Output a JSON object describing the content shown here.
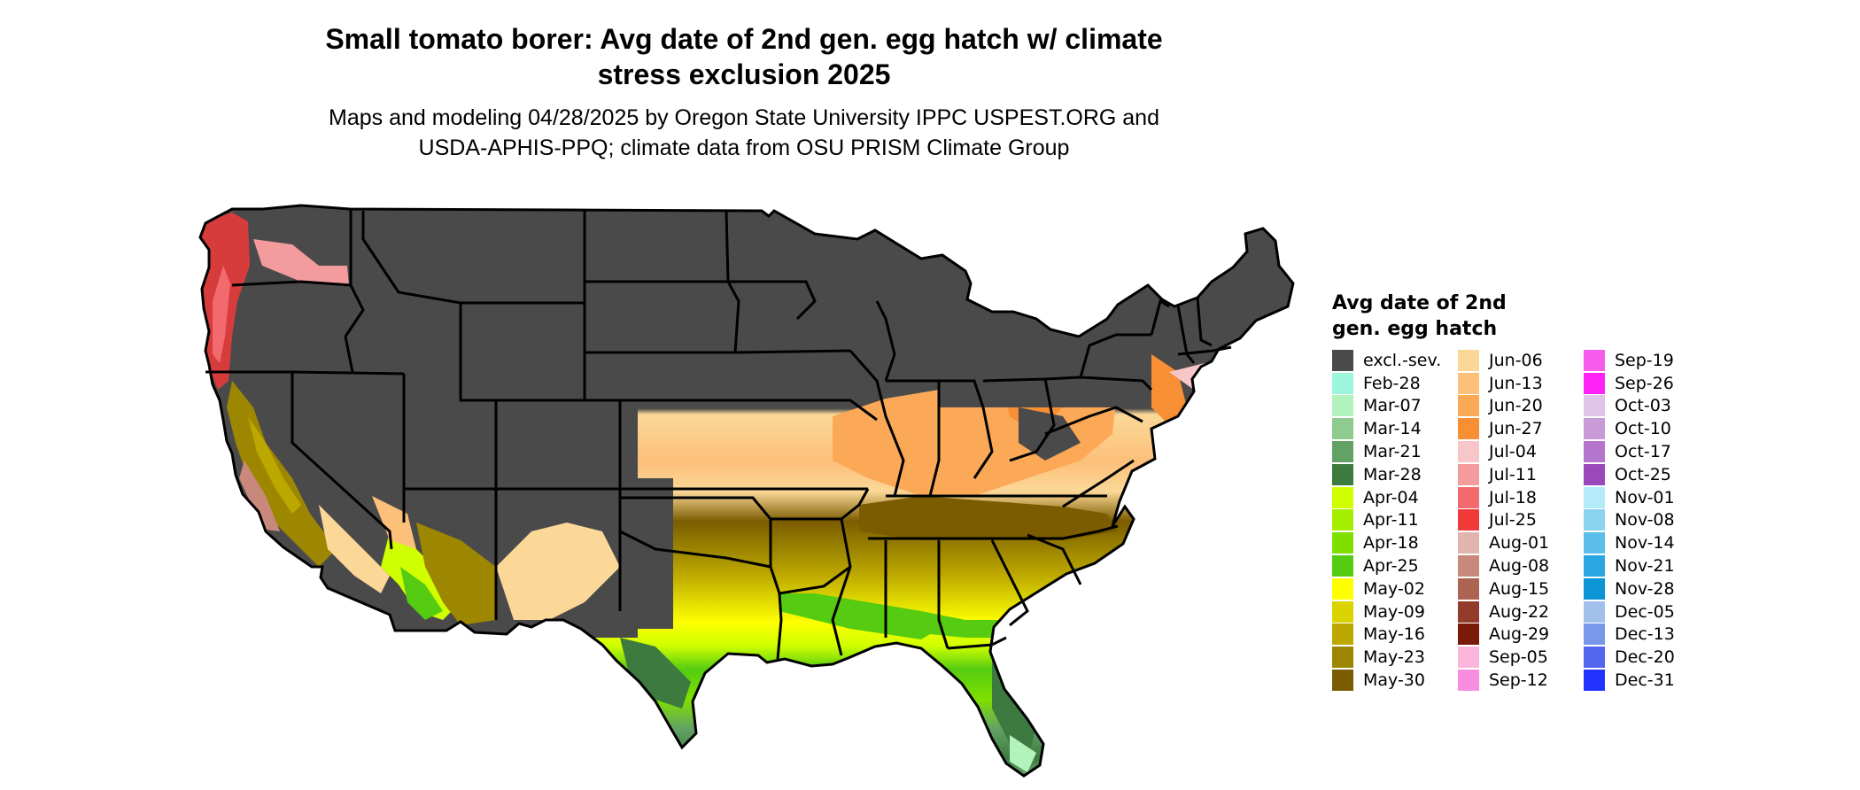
{
  "title": "Small tomato borer: Avg date of 2nd gen. egg hatch w/ climate\nstress exclusion 2025",
  "subtitle": "Maps and modeling 04/28/2025 by Oregon State University IPPC USPEST.ORG and\nUSDA-APHIS-PPQ; climate data from OSU PRISM Climate Group",
  "legend": {
    "title": "Avg date of 2nd\ngen. egg hatch",
    "columns": [
      [
        {
          "label": "excl.-sev.",
          "color": "#4a4a4a"
        },
        {
          "label": "Feb-28",
          "color": "#9cf5dd"
        },
        {
          "label": "Mar-07",
          "color": "#b2f2bd"
        },
        {
          "label": "Mar-14",
          "color": "#8dcc8e"
        },
        {
          "label": "Mar-21",
          "color": "#62a265"
        },
        {
          "label": "Mar-28",
          "color": "#3d7a40"
        },
        {
          "label": "Apr-04",
          "color": "#cfff00"
        },
        {
          "label": "Apr-11",
          "color": "#a6ee00"
        },
        {
          "label": "Apr-18",
          "color": "#7fe000"
        },
        {
          "label": "Apr-25",
          "color": "#55cc11"
        },
        {
          "label": "May-02",
          "color": "#ffff00"
        },
        {
          "label": "May-09",
          "color": "#dcd400"
        },
        {
          "label": "May-16",
          "color": "#bda800"
        },
        {
          "label": "May-23",
          "color": "#9e8700"
        },
        {
          "label": "May-30",
          "color": "#7b5c00"
        }
      ],
      [
        {
          "label": "Jun-06",
          "color": "#fbd898"
        },
        {
          "label": "Jun-13",
          "color": "#fcc07a"
        },
        {
          "label": "Jun-20",
          "color": "#fca957"
        },
        {
          "label": "Jun-27",
          "color": "#f98f34"
        },
        {
          "label": "Jul-04",
          "color": "#f7c6c8"
        },
        {
          "label": "Jul-11",
          "color": "#f49b9d"
        },
        {
          "label": "Jul-18",
          "color": "#f26a6d"
        },
        {
          "label": "Jul-25",
          "color": "#f03a3a"
        },
        {
          "label": "Aug-01",
          "color": "#e2b4ae"
        },
        {
          "label": "Aug-08",
          "color": "#c8897c"
        },
        {
          "label": "Aug-15",
          "color": "#ad6352"
        },
        {
          "label": "Aug-22",
          "color": "#943c2c"
        },
        {
          "label": "Aug-29",
          "color": "#7a1b0a"
        },
        {
          "label": "Sep-05",
          "color": "#fbb6dc"
        },
        {
          "label": "Sep-12",
          "color": "#f78ee0"
        }
      ],
      [
        {
          "label": "Sep-19",
          "color": "#f75cec"
        },
        {
          "label": "Sep-26",
          "color": "#ff22f7"
        },
        {
          "label": "Oct-03",
          "color": "#e0c3e8"
        },
        {
          "label": "Oct-10",
          "color": "#c99ad8"
        },
        {
          "label": "Oct-17",
          "color": "#b575cc"
        },
        {
          "label": "Oct-25",
          "color": "#9a48bb"
        },
        {
          "label": "Nov-01",
          "color": "#b3ecf8"
        },
        {
          "label": "Nov-08",
          "color": "#8ad4f2"
        },
        {
          "label": "Nov-14",
          "color": "#5bbeea"
        },
        {
          "label": "Nov-21",
          "color": "#2aa6e3"
        },
        {
          "label": "Nov-28",
          "color": "#0b94d6"
        },
        {
          "label": "Dec-05",
          "color": "#a3c0ec"
        },
        {
          "label": "Dec-13",
          "color": "#7a98ea"
        },
        {
          "label": "Dec-20",
          "color": "#5266f0"
        },
        {
          "label": "Dec-31",
          "color": "#2233ff"
        }
      ]
    ]
  },
  "map": {
    "background_color": "#ffffff",
    "excluded_color": "#4a4a4a",
    "border_color": "#000000"
  }
}
